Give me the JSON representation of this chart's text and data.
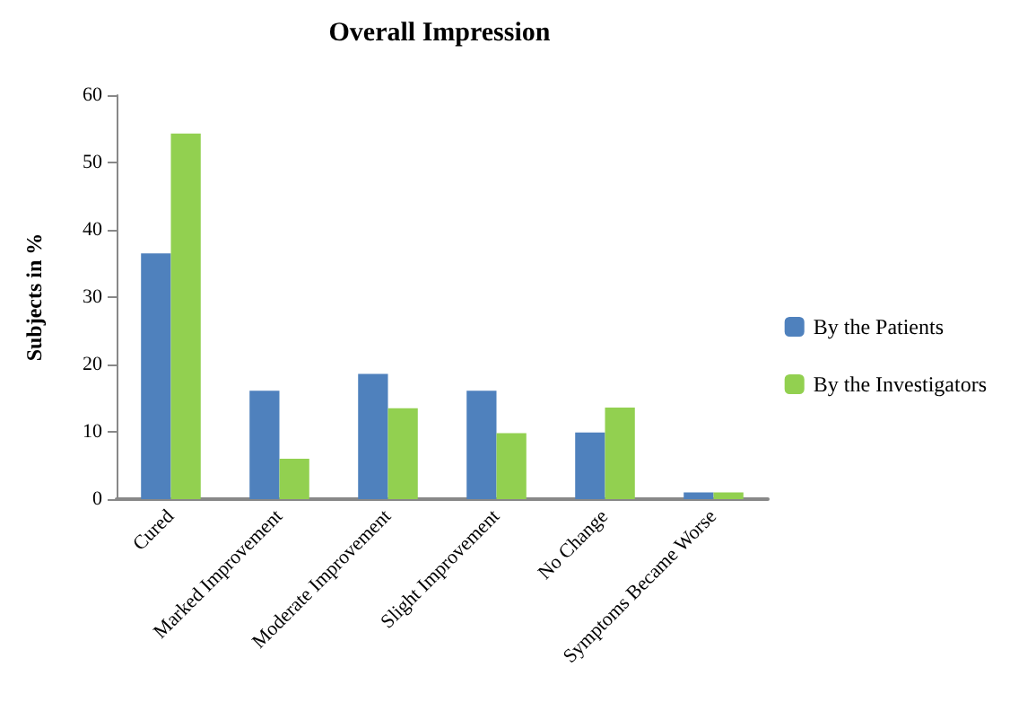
{
  "chart_data": {
    "type": "bar",
    "title": "Overall Impression",
    "ylabel": "Subjects in %",
    "categories": [
      "Cured",
      "Marked Improvement",
      "Moderate Improvement",
      "Slight Improvement",
      "No Change",
      "Symptoms Became Worse"
    ],
    "series": [
      {
        "name": "By the Patients",
        "color": "#4f81bd",
        "values": [
          36.5,
          16.1,
          18.6,
          16.1,
          9.9,
          1.0
        ]
      },
      {
        "name": "By the Investigators",
        "color": "#92d050",
        "values": [
          54.3,
          6.0,
          13.5,
          9.8,
          13.6,
          1.0
        ]
      }
    ],
    "ylim": [
      0,
      60
    ],
    "yticks": [
      0,
      10,
      20,
      30,
      40,
      50,
      60
    ],
    "grid": false,
    "legend": "right"
  }
}
